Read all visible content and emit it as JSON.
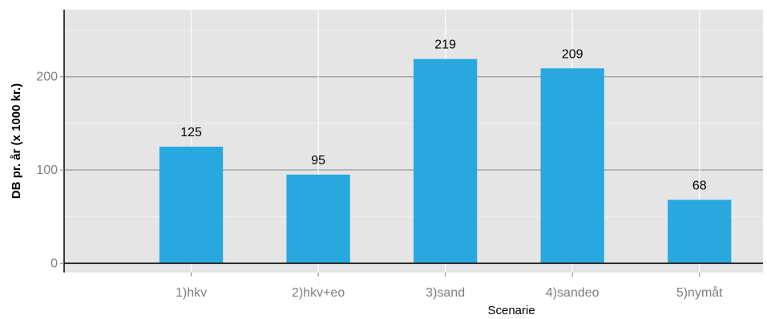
{
  "chart_data": {
    "type": "bar",
    "categories": [
      "1)hkv",
      "2)hkv+eo",
      "3)sand",
      "4)sandeo",
      "5)nymåt"
    ],
    "values": [
      125,
      95,
      219,
      209,
      68
    ],
    "value_labels": [
      "125",
      "95",
      "219",
      "209",
      "68"
    ],
    "xlabel": "Scenarie",
    "ylabel": "DB pr. år (x 1000 kr.)",
    "ylim": [
      -10,
      272
    ],
    "yticks": [
      0,
      100,
      200
    ],
    "ytick_labels": [
      "0",
      "100",
      "200"
    ],
    "grid": true,
    "bar_color": "#29a8df",
    "panel_color": "#e5e5e5",
    "grid_major_color": "#a6a6a6",
    "grid_minor_color": "#f2f2f2"
  }
}
